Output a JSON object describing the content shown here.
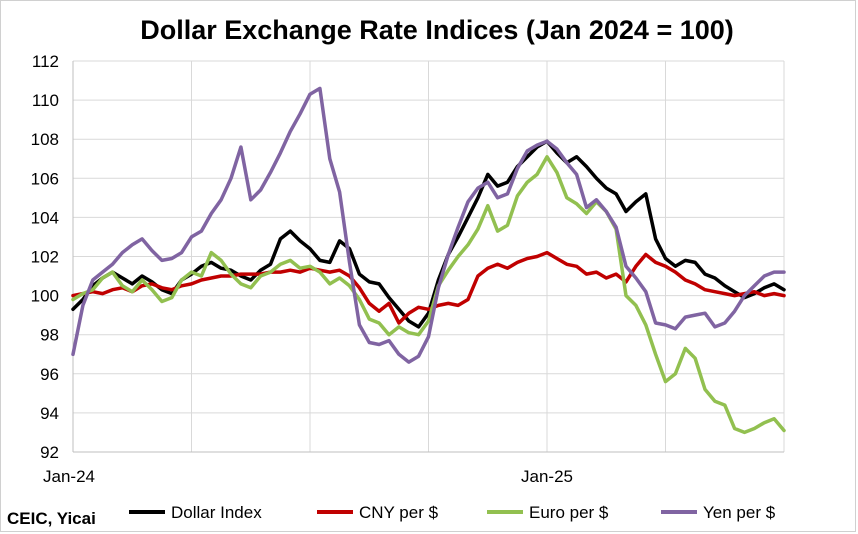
{
  "chart_data": {
    "type": "line",
    "title": "Dollar Exchange Rate Indices (Jan 2024 = 100)",
    "source": "CEIC, Yicai",
    "xlabel": "",
    "ylabel": "",
    "ylim": [
      92,
      112
    ],
    "yticks": [
      "92",
      "94",
      "96",
      "98",
      "100",
      "102",
      "104",
      "106",
      "108",
      "110",
      "112"
    ],
    "xticks": [
      {
        "label": "Jan-24",
        "x": 0
      },
      {
        "label": "Jan-25",
        "x": 12
      }
    ],
    "xlim": [
      0,
      18
    ],
    "grid": true,
    "legend_position": "bottom",
    "series": [
      {
        "name": "Dollar Index",
        "color": "#000000",
        "x": [
          0,
          0.25,
          0.5,
          0.75,
          1,
          1.25,
          1.5,
          1.75,
          2,
          2.25,
          2.5,
          2.75,
          3,
          3.25,
          3.5,
          3.75,
          4,
          4.25,
          4.5,
          4.75,
          5,
          5.25,
          5.5,
          5.75,
          6,
          6.25,
          6.5,
          6.75,
          7,
          7.25,
          7.5,
          7.75,
          8,
          8.25,
          8.5,
          8.75,
          9,
          9.25,
          9.5,
          9.75,
          10,
          10.25,
          10.5,
          10.75,
          11,
          11.25,
          11.5,
          11.75,
          12,
          12.25,
          12.5,
          12.75,
          13,
          13.25,
          13.5,
          13.75,
          14,
          14.25,
          14.5,
          14.75,
          15,
          15.25,
          15.5,
          15.75,
          16,
          16.25,
          16.5,
          16.75,
          17,
          17.25,
          17.5,
          17.75,
          18
        ],
        "values": [
          99.3,
          99.8,
          100.5,
          100.9,
          101.2,
          100.9,
          100.6,
          101.0,
          100.7,
          100.3,
          100.1,
          100.8,
          101.1,
          101.5,
          101.7,
          101.4,
          101.3,
          101.0,
          100.8,
          101.3,
          101.6,
          102.9,
          103.3,
          102.8,
          102.4,
          101.8,
          101.7,
          102.8,
          102.4,
          101.1,
          100.7,
          100.6,
          99.9,
          99.3,
          98.7,
          98.4,
          99.1,
          100.8,
          102.1,
          103.0,
          104.0,
          105.0,
          106.2,
          105.6,
          105.8,
          106.6,
          107.1,
          107.6,
          107.9,
          107.3,
          106.8,
          107.1,
          106.6,
          106.0,
          105.5,
          105.2,
          104.3,
          104.8,
          105.2,
          102.9,
          101.9,
          101.5,
          101.8,
          101.7,
          101.1,
          100.9,
          100.5,
          100.2,
          99.9,
          100.1,
          100.4,
          100.6,
          100.3
        ]
      },
      {
        "name": "CNY per $",
        "color": "#c00000",
        "x": [
          0,
          0.25,
          0.5,
          0.75,
          1,
          1.25,
          1.5,
          1.75,
          2,
          2.25,
          2.5,
          2.75,
          3,
          3.25,
          3.5,
          3.75,
          4,
          4.25,
          4.5,
          4.75,
          5,
          5.25,
          5.5,
          5.75,
          6,
          6.25,
          6.5,
          6.75,
          7,
          7.25,
          7.5,
          7.75,
          8,
          8.25,
          8.5,
          8.75,
          9,
          9.25,
          9.5,
          9.75,
          10,
          10.25,
          10.5,
          10.75,
          11,
          11.25,
          11.5,
          11.75,
          12,
          12.25,
          12.5,
          12.75,
          13,
          13.25,
          13.5,
          13.75,
          14,
          14.25,
          14.5,
          14.75,
          15,
          15.25,
          15.5,
          15.75,
          16,
          16.25,
          16.5,
          16.75,
          17,
          17.25,
          17.5,
          17.75,
          18
        ],
        "values": [
          100.0,
          100.1,
          100.2,
          100.1,
          100.3,
          100.4,
          100.2,
          100.5,
          100.6,
          100.4,
          100.3,
          100.5,
          100.6,
          100.8,
          100.9,
          101.0,
          101.0,
          101.1,
          101.1,
          101.1,
          101.2,
          101.2,
          101.3,
          101.2,
          101.4,
          101.3,
          101.2,
          101.3,
          101.0,
          100.4,
          99.6,
          99.2,
          99.6,
          98.6,
          99.1,
          99.4,
          99.3,
          99.5,
          99.6,
          99.5,
          99.8,
          101.0,
          101.4,
          101.6,
          101.4,
          101.7,
          101.9,
          102.0,
          102.2,
          101.9,
          101.6,
          101.5,
          101.1,
          101.2,
          100.9,
          101.1,
          100.7,
          101.5,
          102.1,
          101.7,
          101.5,
          101.2,
          100.8,
          100.6,
          100.3,
          100.2,
          100.1,
          100.0,
          100.1,
          100.2,
          100.0,
          100.1,
          100.0
        ]
      },
      {
        "name": "Euro per $",
        "color": "#92c050",
        "x": [
          0,
          0.25,
          0.5,
          0.75,
          1,
          1.25,
          1.5,
          1.75,
          2,
          2.25,
          2.5,
          2.75,
          3,
          3.25,
          3.5,
          3.75,
          4,
          4.25,
          4.5,
          4.75,
          5,
          5.25,
          5.5,
          5.75,
          6,
          6.25,
          6.5,
          6.75,
          7,
          7.25,
          7.5,
          7.75,
          8,
          8.25,
          8.5,
          8.75,
          9,
          9.25,
          9.5,
          9.75,
          10,
          10.25,
          10.5,
          10.75,
          11,
          11.25,
          11.5,
          11.75,
          12,
          12.25,
          12.5,
          12.75,
          13,
          13.25,
          13.5,
          13.75,
          14,
          14.25,
          14.5,
          14.75,
          15,
          15.25,
          15.5,
          15.75,
          16,
          16.25,
          16.5,
          16.75,
          17,
          17.25,
          17.5,
          17.75,
          18
        ],
        "values": [
          99.8,
          100.1,
          100.3,
          100.9,
          101.2,
          100.5,
          100.2,
          100.8,
          100.3,
          99.7,
          99.9,
          100.8,
          101.2,
          101.0,
          102.2,
          101.8,
          101.1,
          100.6,
          100.4,
          101.0,
          101.2,
          101.6,
          101.8,
          101.4,
          101.5,
          101.2,
          100.6,
          100.9,
          100.5,
          99.8,
          98.8,
          98.6,
          98.0,
          98.4,
          98.1,
          98.0,
          98.7,
          100.5,
          101.3,
          102.0,
          102.6,
          103.4,
          104.6,
          103.3,
          103.6,
          105.1,
          105.8,
          106.2,
          107.1,
          106.3,
          105.0,
          104.7,
          104.2,
          104.8,
          104.3,
          103.4,
          100.0,
          99.5,
          98.5,
          97.0,
          95.6,
          96.0,
          97.3,
          96.8,
          95.2,
          94.6,
          94.4,
          93.2,
          93.0,
          93.2,
          93.5,
          93.7,
          93.1
        ]
      },
      {
        "name": "Yen per $",
        "color": "#8064a2",
        "x": [
          0,
          0.25,
          0.5,
          0.75,
          1,
          1.25,
          1.5,
          1.75,
          2,
          2.25,
          2.5,
          2.75,
          3,
          3.25,
          3.5,
          3.75,
          4,
          4.25,
          4.5,
          4.75,
          5,
          5.25,
          5.5,
          5.75,
          6,
          6.25,
          6.5,
          6.75,
          7,
          7.25,
          7.5,
          7.75,
          8,
          8.25,
          8.5,
          8.75,
          9,
          9.25,
          9.5,
          9.75,
          10,
          10.25,
          10.5,
          10.75,
          11,
          11.25,
          11.5,
          11.75,
          12,
          12.25,
          12.5,
          12.75,
          13,
          13.25,
          13.5,
          13.75,
          14,
          14.25,
          14.5,
          14.75,
          15,
          15.25,
          15.5,
          15.75,
          16,
          16.25,
          16.5,
          16.75,
          17,
          17.25,
          17.5,
          17.75,
          18
        ],
        "values": [
          97.0,
          99.5,
          100.8,
          101.2,
          101.6,
          102.2,
          102.6,
          102.9,
          102.3,
          101.8,
          101.9,
          102.2,
          103.0,
          103.3,
          104.2,
          104.9,
          106.0,
          107.6,
          104.9,
          105.4,
          106.3,
          107.3,
          108.4,
          109.3,
          110.3,
          110.6,
          107.0,
          105.3,
          101.7,
          98.5,
          97.6,
          97.5,
          97.7,
          97.0,
          96.6,
          96.9,
          97.9,
          100.4,
          102.1,
          103.5,
          104.8,
          105.5,
          105.8,
          105.0,
          105.2,
          106.5,
          107.4,
          107.7,
          107.9,
          107.5,
          106.8,
          106.2,
          104.5,
          104.9,
          104.3,
          103.5,
          101.5,
          100.9,
          100.2,
          98.6,
          98.5,
          98.3,
          98.9,
          99.0,
          99.1,
          98.4,
          98.6,
          99.2,
          100.0,
          100.5,
          101.0,
          101.2,
          101.2
        ]
      }
    ]
  }
}
